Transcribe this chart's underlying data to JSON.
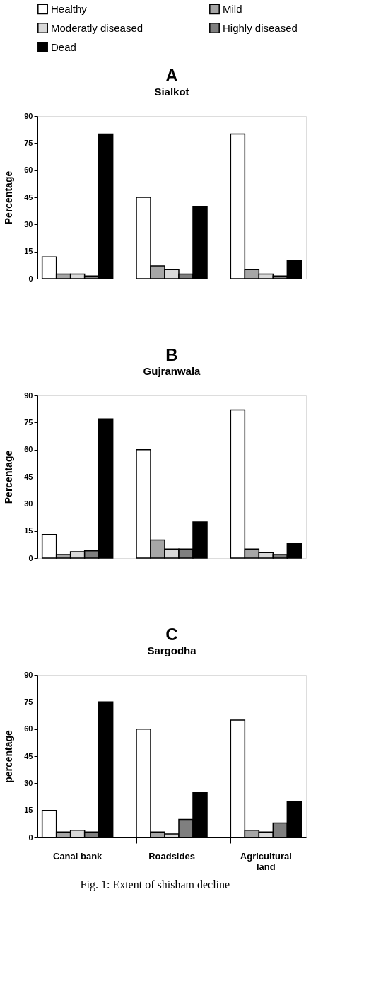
{
  "chart_data": [
    {
      "type": "bar",
      "title": "A",
      "subtitle": "Sialkot",
      "ylabel": "Percentage",
      "categories": [
        null,
        null,
        null
      ],
      "tick_labels": "y",
      "legend": "top",
      "ylim": [
        0,
        90
      ],
      "yticks": [
        0,
        15,
        30,
        45,
        60,
        75,
        90
      ],
      "series": [
        {
          "name": "Healthy",
          "color": "#ffffff",
          "values": [
            12,
            45,
            80
          ]
        },
        {
          "name": "Mild",
          "color": "#a6a6a6",
          "values": [
            2.5,
            7,
            5
          ]
        },
        {
          "name": "Moderatly diseased",
          "color": "#d9d9d9",
          "values": [
            2.5,
            5,
            2.5
          ]
        },
        {
          "name": "Highly diseased",
          "color": "#7f7f7f",
          "values": [
            1.5,
            2.5,
            1.5
          ]
        },
        {
          "name": "Dead",
          "color": "#000000",
          "values": [
            80,
            40,
            10
          ]
        }
      ]
    },
    {
      "type": "bar",
      "title": "B",
      "subtitle": "Gujranwala",
      "ylabel": "Percentage",
      "categories": [
        null,
        null,
        null
      ],
      "tick_labels": "y",
      "ylim": [
        0,
        90
      ],
      "yticks": [
        0,
        15,
        30,
        45,
        60,
        75,
        90
      ],
      "series": [
        {
          "name": "Healthy",
          "color": "#ffffff",
          "values": [
            13,
            60,
            82
          ]
        },
        {
          "name": "Mild",
          "color": "#a6a6a6",
          "values": [
            2,
            10,
            5
          ]
        },
        {
          "name": "Moderatly diseased",
          "color": "#d9d9d9",
          "values": [
            3.5,
            5,
            3
          ]
        },
        {
          "name": "Highly diseased",
          "color": "#7f7f7f",
          "values": [
            4,
            5,
            2
          ]
        },
        {
          "name": "Dead",
          "color": "#000000",
          "values": [
            77,
            20,
            8
          ]
        }
      ]
    },
    {
      "type": "bar",
      "title": "C",
      "subtitle": "Sargodha",
      "ylabel": "percentage",
      "categories": [
        "Canal bank",
        "Roadsides",
        "Agricultural land"
      ],
      "ylim": [
        0,
        90
      ],
      "yticks": [
        0,
        15,
        30,
        45,
        60,
        75,
        90
      ],
      "annotations": [
        "Fig. 1: Extent of shisham decline"
      ],
      "series": [
        {
          "name": "Healthy",
          "color": "#ffffff",
          "values": [
            15,
            60,
            65
          ]
        },
        {
          "name": "Mild",
          "color": "#a6a6a6",
          "values": [
            3,
            3,
            4
          ]
        },
        {
          "name": "Moderatly diseased",
          "color": "#d9d9d9",
          "values": [
            4,
            2,
            3
          ]
        },
        {
          "name": "Highly diseased",
          "color": "#7f7f7f",
          "values": [
            3,
            10,
            8
          ]
        },
        {
          "name": "Dead",
          "color": "#000000",
          "values": [
            75,
            25,
            20
          ]
        }
      ]
    }
  ]
}
